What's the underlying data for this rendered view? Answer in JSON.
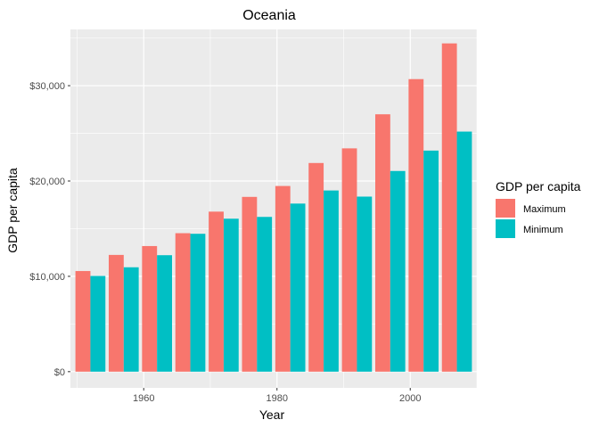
{
  "chart_data": {
    "type": "bar",
    "title": "Oceania",
    "xlabel": "Year",
    "ylabel": "GDP per capita",
    "x": [
      1952,
      1957,
      1962,
      1967,
      1972,
      1977,
      1982,
      1987,
      1992,
      1997,
      2002,
      2007
    ],
    "series": [
      {
        "name": "Maximum",
        "color": "#F8766D",
        "values": [
          10557,
          12247,
          13176,
          14526,
          16788,
          18334,
          19477,
          21889,
          23425,
          26998,
          30688,
          34435
        ]
      },
      {
        "name": "Minimum",
        "color": "#00BFC4",
        "values": [
          10040,
          10950,
          12217,
          14463,
          16046,
          16234,
          17632,
          19007,
          18363,
          21050,
          23190,
          25185
        ]
      }
    ],
    "xlim": [
      1949,
      2010
    ],
    "ylim": [
      -1700,
      35900
    ],
    "x_ticks": [
      1960,
      1980,
      2000
    ],
    "x_tick_labels": [
      "1960",
      "1980",
      "2000"
    ],
    "y_ticks": [
      0,
      10000,
      20000,
      30000
    ],
    "y_tick_labels": [
      "$0",
      "$10,000",
      "$20,000",
      "$30,000"
    ],
    "legend": {
      "title": "GDP per capita",
      "placement": "right",
      "entries": [
        "Maximum",
        "Minimum"
      ]
    },
    "grid": true,
    "panel_background": "#EBEBEB",
    "grid_color": "#FFFFFF"
  }
}
